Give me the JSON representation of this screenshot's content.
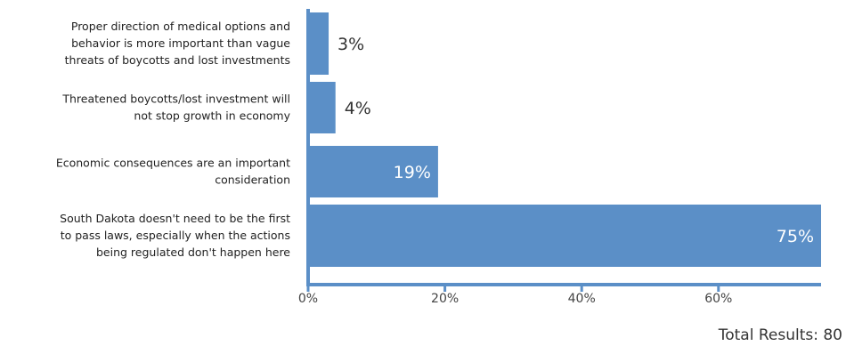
{
  "chart_data": {
    "type": "bar",
    "orientation": "horizontal",
    "categories": [
      [
        "Proper direction of medical options and",
        "behavior is more important than vague",
        "threats of boycotts and lost investments"
      ],
      [
        "Threatened boycotts/lost investment will",
        "not stop growth in economy"
      ],
      [
        "Economic consequences are an important",
        "consideration"
      ],
      [
        "South Dakota doesn't need to be the first",
        "to pass laws, especially when the actions",
        "being regulated don't happen here"
      ]
    ],
    "values": [
      3,
      4,
      19,
      75
    ],
    "value_labels": [
      "3%",
      "4%",
      "19%",
      "75%"
    ],
    "xticks": [
      0,
      20,
      40,
      60
    ],
    "xtick_labels": [
      "0%",
      "20%",
      "40%",
      "60%"
    ],
    "xlim": [
      0,
      75
    ],
    "bar_color": "#5b8fc7",
    "axis_color": "#5b8fc7",
    "grid": false,
    "title": "",
    "xlabel": "",
    "ylabel": ""
  },
  "footer": {
    "total_text": "Total Results: 80"
  }
}
